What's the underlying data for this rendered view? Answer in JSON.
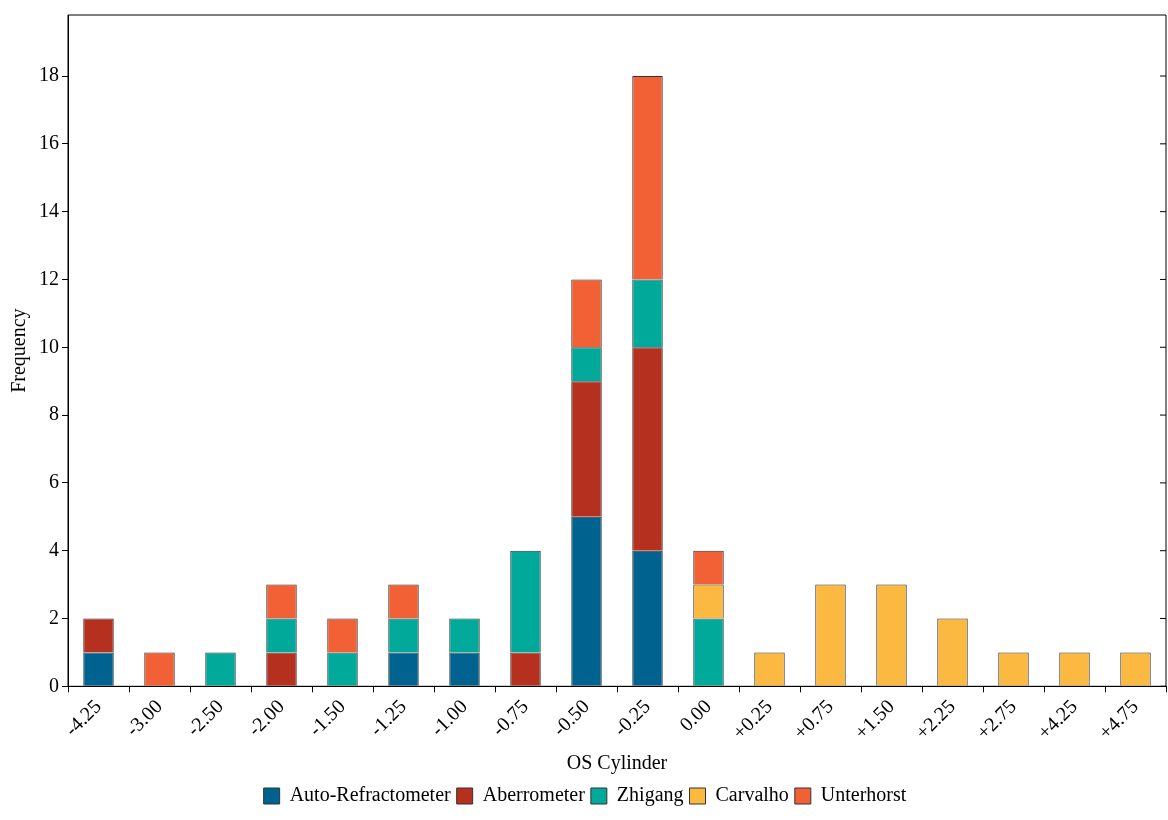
{
  "chart_data": {
    "type": "bar",
    "stacked": true,
    "xlabel": "OS Cylinder",
    "ylabel": "Frequency",
    "categories": [
      "-4.25",
      "-3.00",
      "-2.50",
      "-2.00",
      "-1.50",
      "-1.25",
      "-1.00",
      "-0.75",
      "-0.50",
      "-0.25",
      "0.00",
      "+0.25",
      "+0.75",
      "+1.50",
      "+2.25",
      "+2.75",
      "+4.25",
      "+4.75"
    ],
    "series": [
      {
        "name": "Auto-Refractometer",
        "color": "#00638f",
        "values": [
          1,
          0,
          0,
          0,
          0,
          1,
          1,
          0,
          5,
          4,
          0,
          0,
          0,
          0,
          0,
          0,
          0,
          0
        ]
      },
      {
        "name": "Aberrometer",
        "color": "#b5301e",
        "values": [
          1,
          0,
          0,
          1,
          0,
          0,
          0,
          1,
          4,
          6,
          0,
          0,
          0,
          0,
          0,
          0,
          0,
          0
        ]
      },
      {
        "name": "Zhigang",
        "color": "#00a99a",
        "values": [
          0,
          0,
          1,
          1,
          1,
          1,
          1,
          3,
          1,
          2,
          2,
          0,
          0,
          0,
          0,
          0,
          0,
          0
        ]
      },
      {
        "name": "Carvalho",
        "color": "#fbb941",
        "values": [
          0,
          0,
          0,
          0,
          0,
          0,
          0,
          0,
          0,
          0,
          1,
          1,
          3,
          3,
          2,
          1,
          1,
          1
        ]
      },
      {
        "name": "Unterhorst",
        "color": "#f26035",
        "values": [
          0,
          1,
          0,
          1,
          1,
          1,
          0,
          0,
          2,
          6,
          1,
          0,
          0,
          0,
          0,
          0,
          0,
          0
        ]
      }
    ],
    "ylim": [
      0,
      19.8
    ],
    "yticks": [
      0,
      2,
      4,
      6,
      8,
      10,
      12,
      14,
      16,
      18
    ],
    "grid": false,
    "legend": "bottom"
  }
}
